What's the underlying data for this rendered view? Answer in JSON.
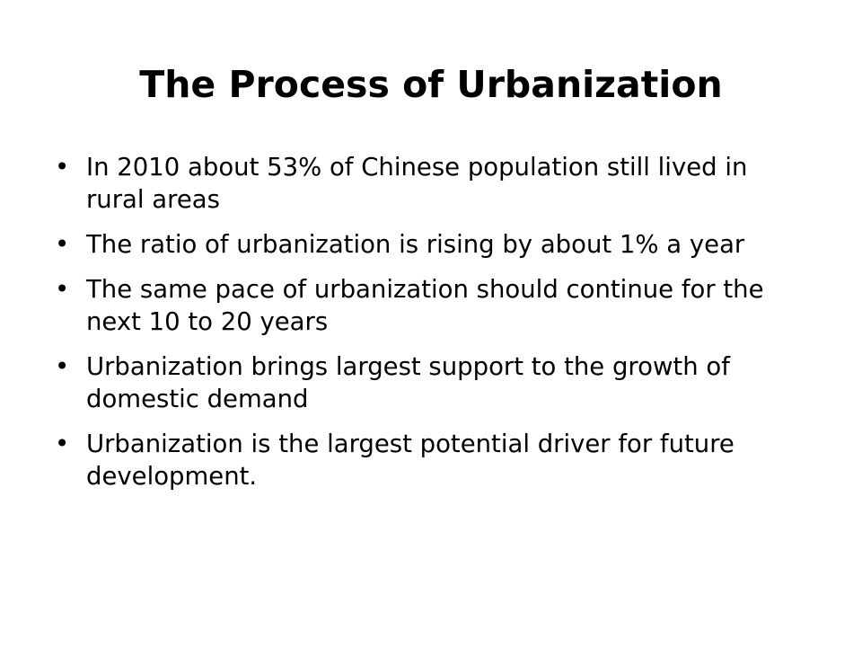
{
  "slide": {
    "title": "The Process of Urbanization",
    "bullet_symbol": "•",
    "bullets": [
      "In 2010 about 53% of Chinese population still lived in rural areas",
      "The ratio of urbanization is rising by about 1% a year",
      "The same pace of urbanization should continue for the next 10 to 20 years",
      "Urbanization brings largest support to the growth of domestic demand",
      "Urbanization is the largest potential driver for future development."
    ]
  },
  "colors": {
    "background": "#ffffff",
    "text": "#000000"
  }
}
